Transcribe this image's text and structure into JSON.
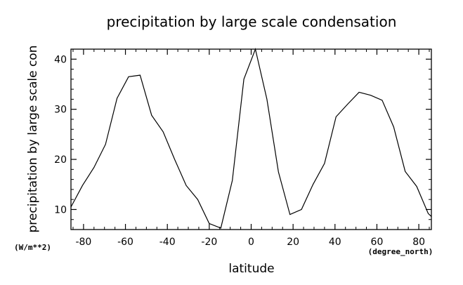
{
  "chart_data": {
    "type": "line",
    "title": "precipitation by large scale condensation",
    "xlabel": "latitude",
    "ylabel": "precipitation by large scale con",
    "x_unit": "(degree_north)",
    "y_unit": "(W/m**2)",
    "xlim": [
      -86,
      86
    ],
    "ylim": [
      6,
      42
    ],
    "x_ticks": [
      -80,
      -60,
      -40,
      -20,
      0,
      20,
      40,
      60,
      80
    ],
    "y_ticks": [
      10,
      20,
      30,
      40
    ],
    "x_tick_labels": [
      "-80",
      "-60",
      "-40",
      "-20",
      "0",
      "20",
      "40",
      "60",
      "80"
    ],
    "y_tick_labels": [
      "10",
      "20",
      "30",
      "40"
    ],
    "grid": false,
    "series": [
      {
        "color": "#000000",
        "x": [
          -86,
          -80.5,
          -75,
          -69.5,
          -64,
          -58.5,
          -53,
          -47.5,
          -42,
          -36.5,
          -31,
          -25.5,
          -20,
          -14.5,
          -9,
          -3.5,
          2,
          7.5,
          13,
          18.5,
          24,
          29.5,
          35,
          40.5,
          46,
          51.5,
          57,
          62.5,
          68,
          73.5,
          79,
          84.5,
          86
        ],
        "values": [
          10.5,
          14.8,
          18.4,
          23.0,
          32.2,
          36.5,
          36.8,
          28.8,
          25.5,
          20.0,
          14.8,
          12.0,
          7.2,
          6.3,
          15.8,
          36.0,
          42.0,
          32.0,
          17.5,
          9.0,
          10.0,
          15.0,
          19.2,
          28.5,
          31.0,
          33.4,
          32.8,
          31.8,
          26.5,
          17.6,
          14.6,
          9.2,
          8.6
        ]
      }
    ]
  }
}
